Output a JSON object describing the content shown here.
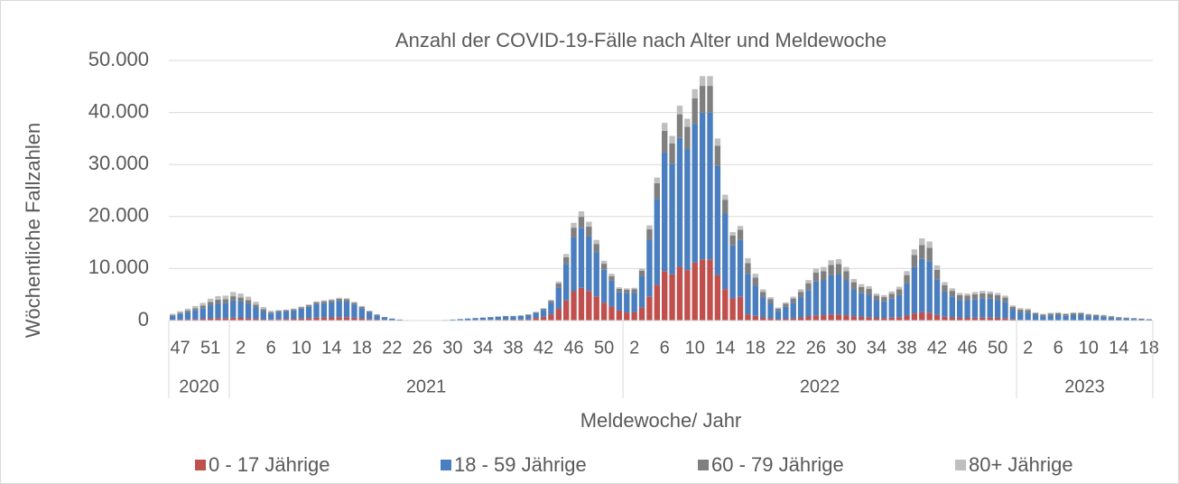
{
  "chart_data": {
    "type": "stacked_bar",
    "title": "Anzahl der COVID-19-Fälle nach Alter und Meldewoche",
    "y_label": "Wöchentliche Fallzahlen",
    "x_label": "Meldewoche/ Jahr",
    "ylim": [
      0,
      50000
    ],
    "yticks": [
      0,
      {
        "value": 10000,
        "label": "10.000"
      },
      {
        "value": 20000,
        "label": "20.000"
      },
      {
        "value": 30000,
        "label": "30.000"
      },
      {
        "value": 40000,
        "label": "40.000"
      },
      {
        "value": 50000,
        "label": "50.000"
      }
    ],
    "grid": true,
    "legend": "bottom",
    "groups": [
      {
        "label": "2020",
        "size": 8
      },
      {
        "label": "2021",
        "size": 52
      },
      {
        "label": "2022",
        "size": 52
      },
      {
        "label": "2023",
        "size": 18
      }
    ],
    "categories": [
      null,
      "47",
      null,
      null,
      null,
      "51",
      null,
      null,
      null,
      "2",
      null,
      null,
      null,
      "6",
      null,
      null,
      null,
      "10",
      null,
      null,
      null,
      "14",
      null,
      null,
      null,
      "18",
      null,
      null,
      null,
      "22",
      null,
      null,
      null,
      "26",
      null,
      null,
      null,
      "30",
      null,
      null,
      null,
      "34",
      null,
      null,
      null,
      "38",
      null,
      null,
      null,
      "42",
      null,
      null,
      null,
      "46",
      null,
      null,
      null,
      "50",
      null,
      null,
      null,
      "2",
      null,
      null,
      null,
      "6",
      null,
      null,
      null,
      "10",
      null,
      null,
      null,
      "14",
      null,
      null,
      null,
      "18",
      null,
      null,
      null,
      "22",
      null,
      null,
      null,
      "26",
      null,
      null,
      null,
      "30",
      null,
      null,
      null,
      "34",
      null,
      null,
      null,
      "38",
      null,
      null,
      null,
      "42",
      null,
      null,
      null,
      "46",
      null,
      null,
      null,
      "50",
      null,
      null,
      null,
      "2",
      null,
      null,
      null,
      "6",
      null,
      null,
      null,
      "10",
      null,
      null,
      null,
      "14",
      null,
      null,
      null,
      "18"
    ],
    "series": [
      {
        "name": "0 - 17 Jährige",
        "color": "#c0504d",
        "values": [
          130,
          180,
          230,
          280,
          340,
          420,
          470,
          480,
          550,
          520,
          460,
          360,
          260,
          190,
          300,
          315,
          345,
          405,
          465,
          555,
          585,
          615,
          660,
          645,
          540,
          420,
          285,
          180,
          140,
          80,
          40,
          20,
          16,
          12,
          12,
          16,
          24,
          40,
          60,
          80,
          100,
          120,
          140,
          160,
          180,
          180,
          200,
          240,
          510,
          720,
          1200,
          2250,
          3840,
          5640,
          6300,
          5700,
          4650,
          3450,
          2700,
          1920,
          1550,
          1575,
          2500,
          4575,
          6875,
          9500,
          8875,
          10325,
          9700,
          11125,
          11750,
          11750,
          8750,
          6050,
          4250,
          4550,
          1200,
          900,
          600,
          450,
          250,
          350,
          460,
          600,
          780,
          1000,
          1030,
          1160,
          1180,
          1030,
          800,
          700,
          660,
          520,
          490,
          560,
          650,
          950,
          1370,
          1580,
          1520,
          1060,
          740,
          620,
          530,
          520,
          550,
          570,
          560,
          530,
          480,
          290,
          120,
          115,
          80,
          65,
          75,
          80,
          70,
          80,
          80,
          65,
          60,
          55,
          45,
          35,
          30,
          25,
          20,
          15
        ]
      },
      {
        "name": "18 - 59 Jährige",
        "color": "#4a7ebf",
        "values": [
          780,
          1080,
          1380,
          1680,
          2040,
          2520,
          2820,
          2880,
          3300,
          3120,
          2760,
          2160,
          1560,
          1140,
          1400,
          1470,
          1610,
          1890,
          2170,
          2590,
          2730,
          2870,
          3080,
          3010,
          2520,
          1960,
          1330,
          840,
          504,
          288,
          144,
          72,
          58,
          43,
          43,
          58,
          86,
          144,
          216,
          288,
          360,
          432,
          504,
          576,
          648,
          648,
          720,
          864,
          935,
          1320,
          2200,
          4125,
          7040,
          10340,
          11550,
          10450,
          8525,
          6325,
          4950,
          3520,
          3720,
          3780,
          6000,
          10980,
          16500,
          22800,
          21300,
          24780,
          23280,
          26700,
          28200,
          28200,
          21000,
          14520,
          10200,
          10920,
          7800,
          5850,
          3900,
          2925,
          1625,
          2275,
          2990,
          3900,
          5070,
          6500,
          6695,
          7540,
          7670,
          6695,
          5200,
          4550,
          4290,
          3380,
          3185,
          3640,
          4225,
          6175,
          8905,
          10270,
          9880,
          6890,
          4810,
          4030,
          3445,
          3380,
          3575,
          3705,
          3640,
          3445,
          3120,
          1885,
          1440,
          1380,
          960,
          780,
          900,
          960,
          840,
          960,
          960,
          780,
          720,
          660,
          540,
          420,
          360,
          300,
          240,
          180
        ]
      },
      {
        "name": "60 - 79 Jährige",
        "color": "#7f7f7f",
        "values": [
          195,
          270,
          345,
          420,
          510,
          630,
          705,
          720,
          825,
          780,
          690,
          540,
          390,
          285,
          200,
          210,
          230,
          270,
          310,
          370,
          390,
          410,
          440,
          430,
          360,
          280,
          190,
          120,
          42,
          24,
          12,
          6,
          5,
          4,
          4,
          5,
          7,
          12,
          18,
          24,
          30,
          36,
          42,
          48,
          54,
          54,
          60,
          72,
          170,
          240,
          400,
          750,
          1280,
          1880,
          2100,
          1900,
          1550,
          1150,
          900,
          640,
          682,
          693,
          1100,
          2013,
          3025,
          4180,
          3905,
          4543,
          4268,
          4895,
          5170,
          5170,
          3850,
          2662,
          1870,
          2002,
          2040,
          1530,
          1020,
          765,
          425,
          595,
          782,
          1020,
          1326,
          1700,
          1751,
          1972,
          2006,
          1751,
          1360,
          1190,
          1122,
          884,
          833,
          952,
          1105,
          1615,
          2329,
          2686,
          2584,
          1802,
          1258,
          1054,
          901,
          884,
          935,
          969,
          952,
          901,
          816,
          493,
          552,
          529,
          368,
          299,
          345,
          368,
          322,
          368,
          368,
          299,
          276,
          253,
          207,
          161,
          138,
          115,
          92,
          69
        ]
      },
      {
        "name": "80+ Jährige",
        "color": "#bfbfbf",
        "values": [
          195,
          270,
          345,
          420,
          510,
          630,
          705,
          720,
          825,
          780,
          690,
          540,
          390,
          285,
          100,
          105,
          115,
          135,
          155,
          185,
          195,
          205,
          220,
          215,
          180,
          140,
          95,
          60,
          14,
          8,
          4,
          2,
          2,
          1,
          1,
          2,
          2,
          4,
          6,
          8,
          10,
          12,
          14,
          16,
          18,
          18,
          20,
          24,
          85,
          120,
          200,
          375,
          640,
          940,
          1050,
          950,
          775,
          575,
          450,
          320,
          248,
          252,
          400,
          732,
          1100,
          1520,
          1420,
          1652,
          1552,
          1780,
          1880,
          1880,
          1400,
          968,
          680,
          728,
          960,
          720,
          480,
          360,
          200,
          280,
          368,
          480,
          624,
          800,
          824,
          928,
          944,
          824,
          640,
          560,
          528,
          416,
          392,
          448,
          520,
          760,
          1096,
          1264,
          1216,
          848,
          592,
          496,
          424,
          416,
          440,
          456,
          448,
          424,
          384,
          232,
          288,
          276,
          192,
          156,
          180,
          192,
          168,
          192,
          192,
          156,
          144,
          132,
          108,
          84,
          72,
          60,
          48,
          36
        ]
      }
    ]
  }
}
